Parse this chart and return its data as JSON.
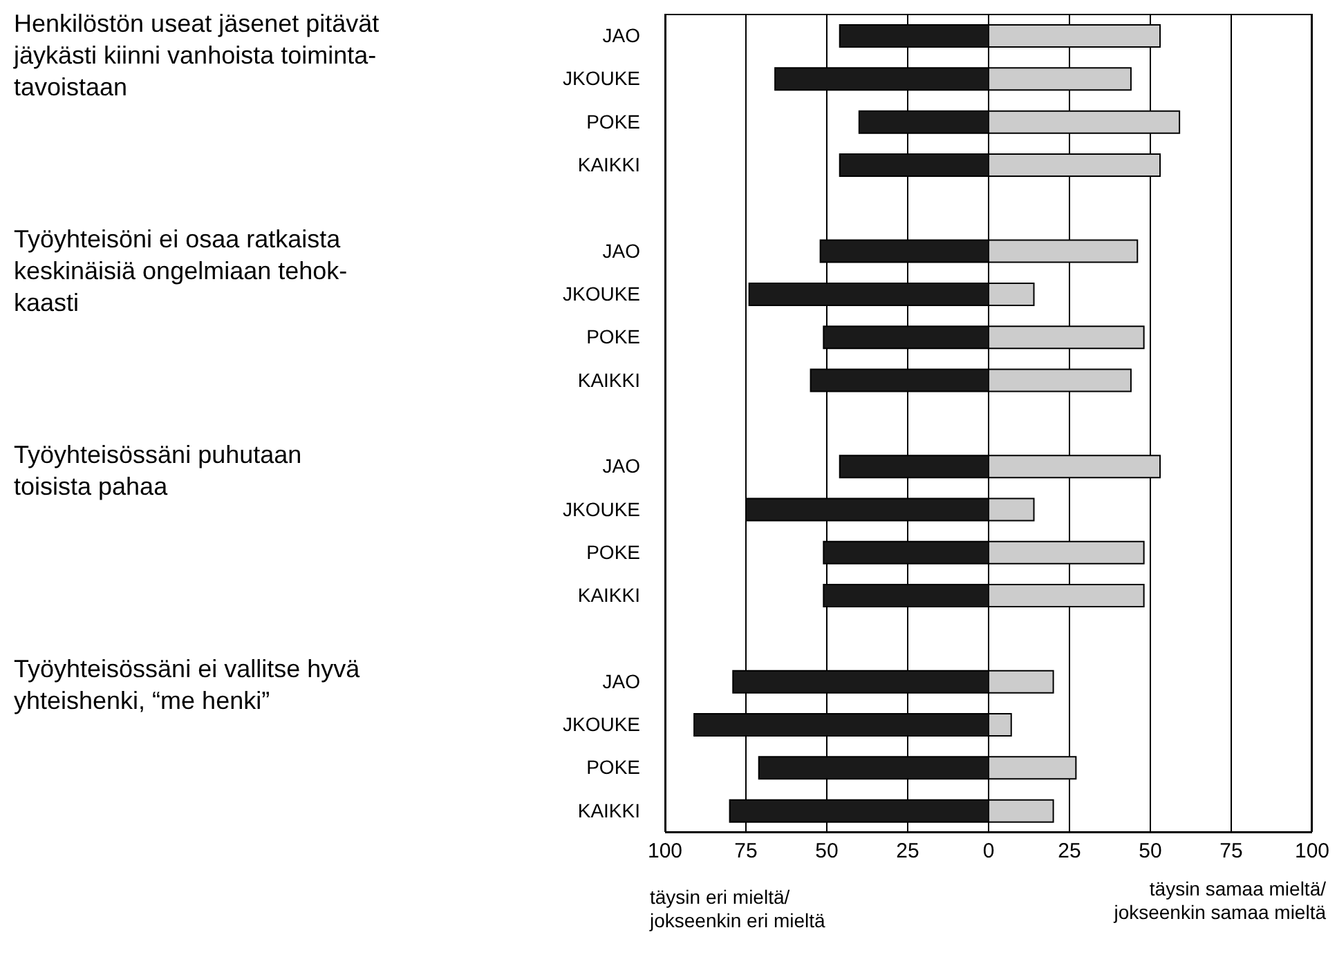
{
  "chart_data": {
    "type": "bar",
    "orientation": "horizontal",
    "stacked": true,
    "categories": [
      "JAO",
      "JKOUKE",
      "POKE",
      "KAIKKI",
      null,
      "JAO",
      "JKOUKE",
      "POKE",
      "KAIKKI",
      null,
      "JAO",
      "JKOUKE",
      "POKE",
      "KAIKKI",
      null,
      "JAO",
      "JKOUKE",
      "POKE",
      "KAIKKI"
    ],
    "series": [
      {
        "color": "#1a1a1a",
        "values": [
          -46,
          -66,
          -40,
          -46,
          null,
          -52,
          -74,
          -51,
          -55,
          null,
          -46,
          -75,
          -51,
          -51,
          null,
          -79,
          -91,
          -71,
          -80
        ]
      },
      {
        "color": "#cccccc",
        "values": [
          53,
          44,
          59,
          53,
          null,
          46,
          14,
          48,
          44,
          null,
          53,
          14,
          48,
          48,
          null,
          20,
          7,
          27,
          20
        ]
      }
    ],
    "xlim": [
      -100,
      100
    ],
    "xticks": [
      {
        "value": -100,
        "label": "100"
      },
      {
        "value": -75,
        "label": "75"
      },
      {
        "value": -50,
        "label": "50"
      },
      {
        "value": -25,
        "label": "25"
      },
      0,
      25,
      50,
      75,
      100
    ],
    "grid": "x",
    "legend": false,
    "annotations": [
      "Henkilöstön useat jäsenet pitävät\njäykästi kiinni vanhoista toiminta-\ntavoistaan",
      "Työyhteisöni ei osaa ratkaista\nkeskinäisiä ongelmiaan tehok-\nkaasti",
      "Työyhteisössäni puhutaan\ntoisista pahaa",
      "Työyhteisössäni ei vallitse hyvä\nyhteishenki, “me henki”",
      "täysin eri mieltä/\njokseenkin eri mieltä",
      "täysin samaa mieltä/\njokseenkin samaa mieltä"
    ]
  }
}
